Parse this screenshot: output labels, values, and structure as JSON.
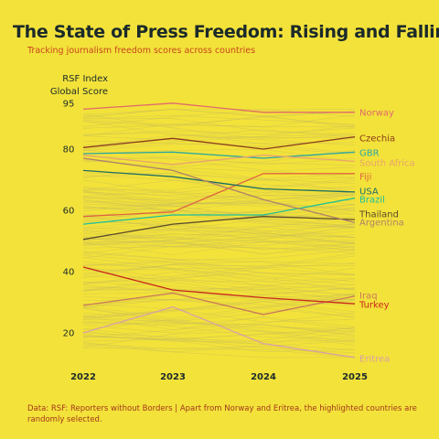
{
  "title": "The State of Press Freedom: Rising and Falling",
  "subtitle": "Tracking journalism freedom scores across countries",
  "ylabel_lines": [
    "RSF Index",
    "Global Score"
  ],
  "footer": "Data: RSF: Reporters without Borders | Apart from Norway and Eritrea, the highlighted countries are randomly selected.",
  "colors": {
    "background": "#f3e23a",
    "title": "#1b2a2a",
    "subtitle": "#c8461c",
    "background_lines": "#c9bd5a"
  },
  "chart_data": {
    "type": "line",
    "title": "The State of Press Freedom: Rising and Falling",
    "subtitle": "Tracking journalism freedom scores across countries",
    "xlabel": "",
    "ylabel": "RSF Index Global Score",
    "x": [
      "2022",
      "2023",
      "2024",
      "2025"
    ],
    "yticks": [
      20,
      40,
      60,
      80,
      95
    ],
    "ylim": [
      12,
      97
    ],
    "grid": false,
    "legend": "direct labels at right",
    "series": [
      {
        "name": "Norway",
        "color": "#e06a6a",
        "values": [
          93,
          95,
          92,
          92
        ]
      },
      {
        "name": "Czechia",
        "color": "#8b3a1a",
        "values": [
          80.5,
          83.5,
          80,
          84
        ]
      },
      {
        "name": "GBR",
        "color": "#2aa7a0",
        "values": [
          78.5,
          79,
          77,
          79
        ]
      },
      {
        "name": "South Africa",
        "color": "#e8a56e",
        "values": [
          78,
          75,
          78,
          76
        ]
      },
      {
        "name": "Fiji",
        "color": "#e0663f",
        "values": [
          58,
          59.5,
          72,
          72
        ]
      },
      {
        "name": "USA",
        "color": "#1f6e64",
        "values": [
          73,
          71,
          67,
          66
        ]
      },
      {
        "name": "Brazil",
        "color": "#1dbf9a",
        "values": [
          55.5,
          58.5,
          58.5,
          64
        ]
      },
      {
        "name": "Thailand",
        "color": "#5a4a2a",
        "values": [
          50.5,
          55.5,
          58,
          57
        ]
      },
      {
        "name": "Argentina",
        "color": "#b0826a",
        "values": [
          77,
          73,
          63.5,
          56
        ]
      },
      {
        "name": "Iraq",
        "color": "#c87a5a",
        "values": [
          29,
          33,
          26,
          32
        ]
      },
      {
        "name": "Turkey",
        "color": "#c8271b",
        "values": [
          41.5,
          34,
          31.5,
          29.5
        ]
      },
      {
        "name": "Eritrea",
        "color": "#d8a0a8",
        "values": [
          20,
          28.5,
          16.5,
          12
        ]
      }
    ],
    "background_series_count": 150
  }
}
